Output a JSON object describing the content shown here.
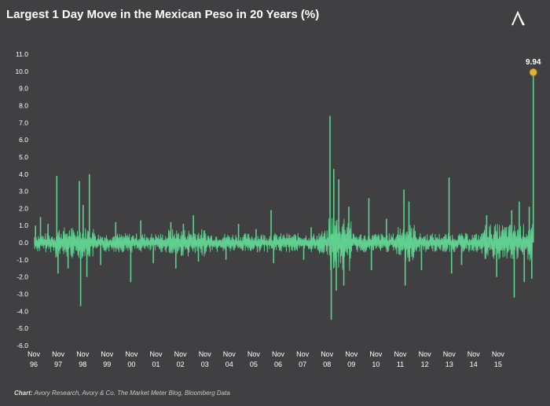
{
  "title": "Largest 1 Day Move in the Mexican Peso in 20 Years (%)",
  "footer": {
    "label": "Chart:",
    "text": "Avory Research, Avory & Co. The Market Meter Blog, Bloomberg Data"
  },
  "colors": {
    "background": "#404042",
    "series": "#5fd08f",
    "highlight": "#e0b43a",
    "axis_text": "#ffffff"
  },
  "chart_data": {
    "type": "line",
    "title": "Largest 1 Day Move in the Mexican Peso in 20 Years (%)",
    "xlabel": "",
    "ylabel": "",
    "ylim": [
      -6.0,
      11.0
    ],
    "yticks": [
      "11.0",
      "10.0",
      "9.0",
      "8.0",
      "7.0",
      "6.0",
      "5.0",
      "4.0",
      "3.0",
      "2.0",
      "1.0",
      "0.0",
      "-1.0",
      "-2.0",
      "-3.0",
      "-4.0",
      "-5.0",
      "-6.0"
    ],
    "xticks": [
      {
        "top": "Nov",
        "bottom": "96"
      },
      {
        "top": "Nov",
        "bottom": "97"
      },
      {
        "top": "Nov",
        "bottom": "98"
      },
      {
        "top": "Nov",
        "bottom": "99"
      },
      {
        "top": "Nov",
        "bottom": "00"
      },
      {
        "top": "Nov",
        "bottom": "01"
      },
      {
        "top": "Nov",
        "bottom": "02"
      },
      {
        "top": "Nov",
        "bottom": "03"
      },
      {
        "top": "Nov",
        "bottom": "04"
      },
      {
        "top": "Nov",
        "bottom": "05"
      },
      {
        "top": "Nov",
        "bottom": "06"
      },
      {
        "top": "Nov",
        "bottom": "07"
      },
      {
        "top": "Nov",
        "bottom": "08"
      },
      {
        "top": "Nov",
        "bottom": "09"
      },
      {
        "top": "Nov",
        "bottom": "10"
      },
      {
        "top": "Nov",
        "bottom": "11"
      },
      {
        "top": "Nov",
        "bottom": "12"
      },
      {
        "top": "Nov",
        "bottom": "13"
      },
      {
        "top": "Nov",
        "bottom": "14"
      },
      {
        "top": "Nov",
        "bottom": "15"
      }
    ],
    "x_range": [
      1996.9,
      2016.9
    ],
    "series": [
      {
        "color": "#5fd08f",
        "spikes": [
          {
            "x": 1997.0,
            "y": 1.0
          },
          {
            "x": 1997.2,
            "y": 1.5
          },
          {
            "x": 1997.5,
            "y": 1.1
          },
          {
            "x": 1997.85,
            "y": 3.9
          },
          {
            "x": 1997.9,
            "y": -1.8
          },
          {
            "x": 1998.3,
            "y": -1.5
          },
          {
            "x": 1998.75,
            "y": 3.6
          },
          {
            "x": 1998.8,
            "y": -3.7
          },
          {
            "x": 1998.9,
            "y": 2.2
          },
          {
            "x": 1999.05,
            "y": -2.0
          },
          {
            "x": 1999.15,
            "y": 4.0
          },
          {
            "x": 1999.6,
            "y": -1.3
          },
          {
            "x": 2000.2,
            "y": 1.2
          },
          {
            "x": 2000.8,
            "y": -2.3
          },
          {
            "x": 2001.2,
            "y": 1.3
          },
          {
            "x": 2001.7,
            "y": -1.2
          },
          {
            "x": 2002.4,
            "y": 1.2
          },
          {
            "x": 2002.6,
            "y": -1.5
          },
          {
            "x": 2002.9,
            "y": 1.1
          },
          {
            "x": 2003.3,
            "y": 1.6
          },
          {
            "x": 2003.5,
            "y": -1.1
          },
          {
            "x": 2004.6,
            "y": -1.0
          },
          {
            "x": 2005.1,
            "y": 1.1
          },
          {
            "x": 2005.8,
            "y": 0.8
          },
          {
            "x": 2006.4,
            "y": 1.9
          },
          {
            "x": 2006.5,
            "y": -1.2
          },
          {
            "x": 2007.7,
            "y": -1.0
          },
          {
            "x": 2008.0,
            "y": 0.9
          },
          {
            "x": 2008.75,
            "y": 7.4
          },
          {
            "x": 2008.8,
            "y": -4.5
          },
          {
            "x": 2008.9,
            "y": 4.3
          },
          {
            "x": 2009.0,
            "y": -2.8
          },
          {
            "x": 2009.1,
            "y": 3.7
          },
          {
            "x": 2009.3,
            "y": -2.5
          },
          {
            "x": 2009.5,
            "y": 2.1
          },
          {
            "x": 2010.3,
            "y": 2.6
          },
          {
            "x": 2010.4,
            "y": -1.6
          },
          {
            "x": 2011.0,
            "y": 1.4
          },
          {
            "x": 2011.7,
            "y": 3.1
          },
          {
            "x": 2011.75,
            "y": -2.5
          },
          {
            "x": 2011.9,
            "y": 2.4
          },
          {
            "x": 2012.4,
            "y": -1.6
          },
          {
            "x": 2013.5,
            "y": 3.8
          },
          {
            "x": 2013.6,
            "y": -1.8
          },
          {
            "x": 2014.0,
            "y": -1.3
          },
          {
            "x": 2015.0,
            "y": 1.6
          },
          {
            "x": 2015.4,
            "y": -2.0
          },
          {
            "x": 2016.0,
            "y": 1.9
          },
          {
            "x": 2016.1,
            "y": -3.2
          },
          {
            "x": 2016.3,
            "y": 2.4
          },
          {
            "x": 2016.5,
            "y": -2.3
          },
          {
            "x": 2016.7,
            "y": 2.1
          },
          {
            "x": 2016.8,
            "y": -2.1
          },
          {
            "x": 2016.86,
            "y": 9.94
          }
        ]
      }
    ],
    "annotations": [
      {
        "text": "9.94",
        "x": 2016.86,
        "y": 9.94
      }
    ]
  }
}
